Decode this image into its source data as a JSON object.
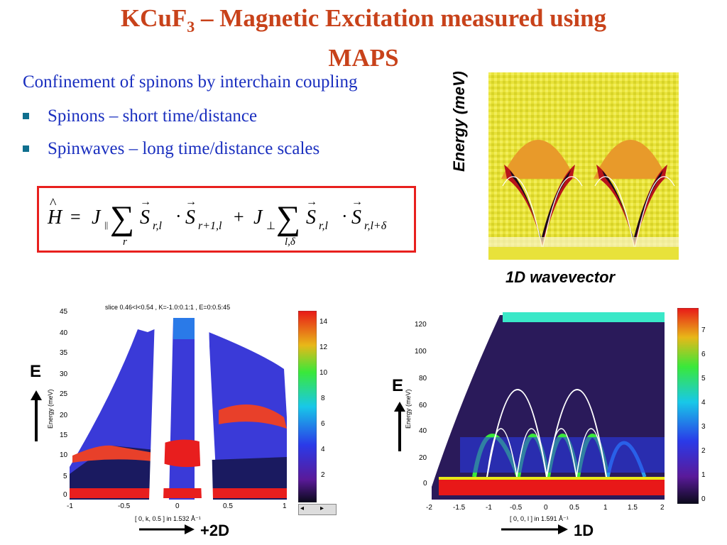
{
  "slide": {
    "title_main": "KCuF",
    "title_sub": "3",
    "title_rest": " – Magnetic Excitation measured using",
    "title_line2": "MAPS",
    "subtitle": "Confinement of spinons by interchain coupling",
    "bullets": [
      "Spinons – short time/distance",
      "Spinwaves – long time/distance scales"
    ]
  },
  "equation": {
    "H": "H",
    "eq": "=",
    "J1": "J",
    "J1_sub": "||",
    "sum1_sub": "r",
    "S1_sub": "r,l",
    "dot": "·",
    "S2_sub": "r+1,l",
    "plus": "+",
    "J2": "J",
    "J2_sub": "⊥",
    "sum2_sub": "l,δ",
    "S3_sub": "r,l",
    "S4_sub": "r,l+δ",
    "S": "S"
  },
  "heatmap_1d": {
    "ylabel": "Energy (meV)",
    "xlabel": "1D wavevector"
  },
  "left_plot": {
    "header": "slice 0.46<l<0.54 , K=-1.0:0.1:1 , E=0:0.5:45",
    "ylabel": "Energy  (meV)",
    "xlabel": "[ 0, k, 0.5 ]  in 1.532 Å⁻¹",
    "yticks": [
      "45",
      "40",
      "35",
      "30",
      "25",
      "20",
      "15",
      "10",
      "5",
      "0"
    ],
    "xticks": [
      "-1",
      "-0.5",
      "0",
      "0.5",
      "1"
    ],
    "colorbar_ticks": [
      "14",
      "12",
      "10",
      "8",
      "6",
      "4",
      "2"
    ],
    "E_label": "E",
    "arrow_label": "+2D"
  },
  "right_plot": {
    "ylabel": "Energy  (meV)",
    "xlabel": "[ 0, 0, l ]  in 1.591 Å⁻¹",
    "yticks": [
      "120",
      "100",
      "80",
      "60",
      "40",
      "20",
      "0"
    ],
    "xticks": [
      "-2",
      "-1.5",
      "-1",
      "-0.5",
      "0",
      "0.5",
      "1",
      "1.5",
      "2"
    ],
    "colorbar_ticks": [
      "7",
      "6",
      "5",
      "4",
      "3",
      "2",
      "1",
      "0"
    ],
    "E_label": "E",
    "arrow_label": "1D"
  },
  "colors": {
    "title": "#c8421a",
    "text_blue": "#1a2fbf",
    "bullet": "#0f6f8e",
    "box_red": "#e8201e"
  }
}
